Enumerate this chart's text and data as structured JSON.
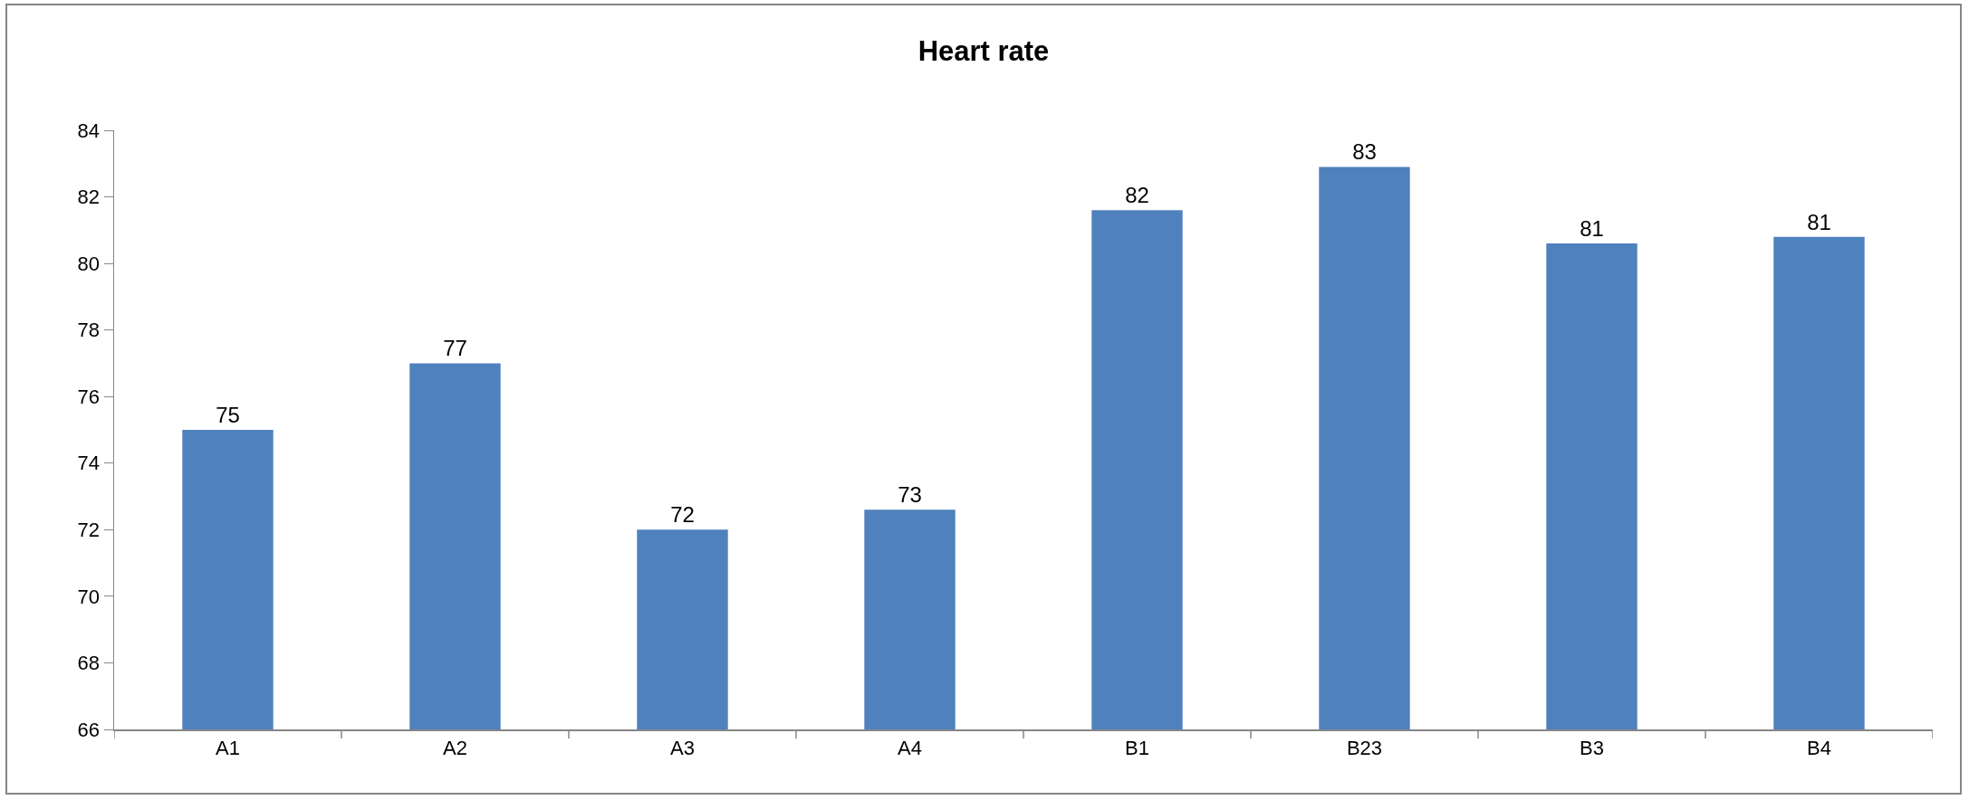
{
  "chart_data": {
    "type": "bar",
    "title": "Heart rate",
    "categories": [
      "A1",
      "A2",
      "A3",
      "A4",
      "B1",
      "B23",
      "B3",
      "B4"
    ],
    "values": [
      75,
      77,
      72,
      72.6,
      81.6,
      82.9,
      80.6,
      80.8
    ],
    "value_labels": [
      "75",
      "77",
      "72",
      "73",
      "82",
      "83",
      "81",
      "81"
    ],
    "color": "#4f81bd",
    "ylim": [
      66,
      84
    ],
    "yticks": [
      66,
      68,
      70,
      72,
      74,
      76,
      78,
      80,
      82,
      84
    ],
    "grid": false,
    "legend": false
  }
}
